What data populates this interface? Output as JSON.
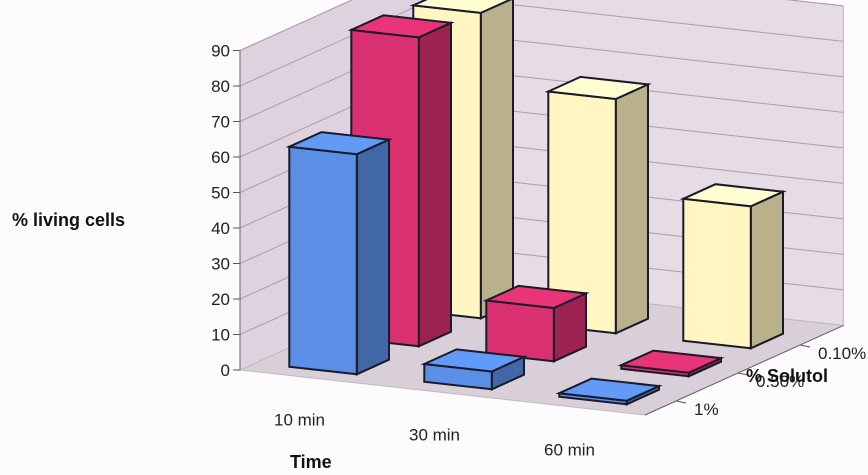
{
  "chart_data": {
    "type": "bar",
    "subtype": "3d-clustered",
    "title": "",
    "ylabel": "% living cells",
    "xlabel": "Time",
    "zlabel": "% Solutol",
    "ylim": [
      0,
      90
    ],
    "yticks": [
      "0",
      "10",
      "20",
      "30",
      "40",
      "50",
      "60",
      "70",
      "80",
      "90"
    ],
    "categories": [
      "10 min",
      "30 min",
      "60 min"
    ],
    "series": [
      {
        "name": "1%",
        "color": "#5b8fe6",
        "values": [
          62,
          5,
          1
        ]
      },
      {
        "name": "0.50%",
        "color": "#d9306f",
        "values": [
          87,
          15,
          1
        ]
      },
      {
        "name": "0.10%",
        "color": "#fff6c2",
        "values": [
          86,
          66,
          40
        ]
      }
    ],
    "depth_order_front_to_back": [
      "1%",
      "0.50%",
      "0.10%"
    ],
    "grid": true,
    "wall_color": "#e6dce6",
    "floor_color": "#d9cfd9"
  }
}
